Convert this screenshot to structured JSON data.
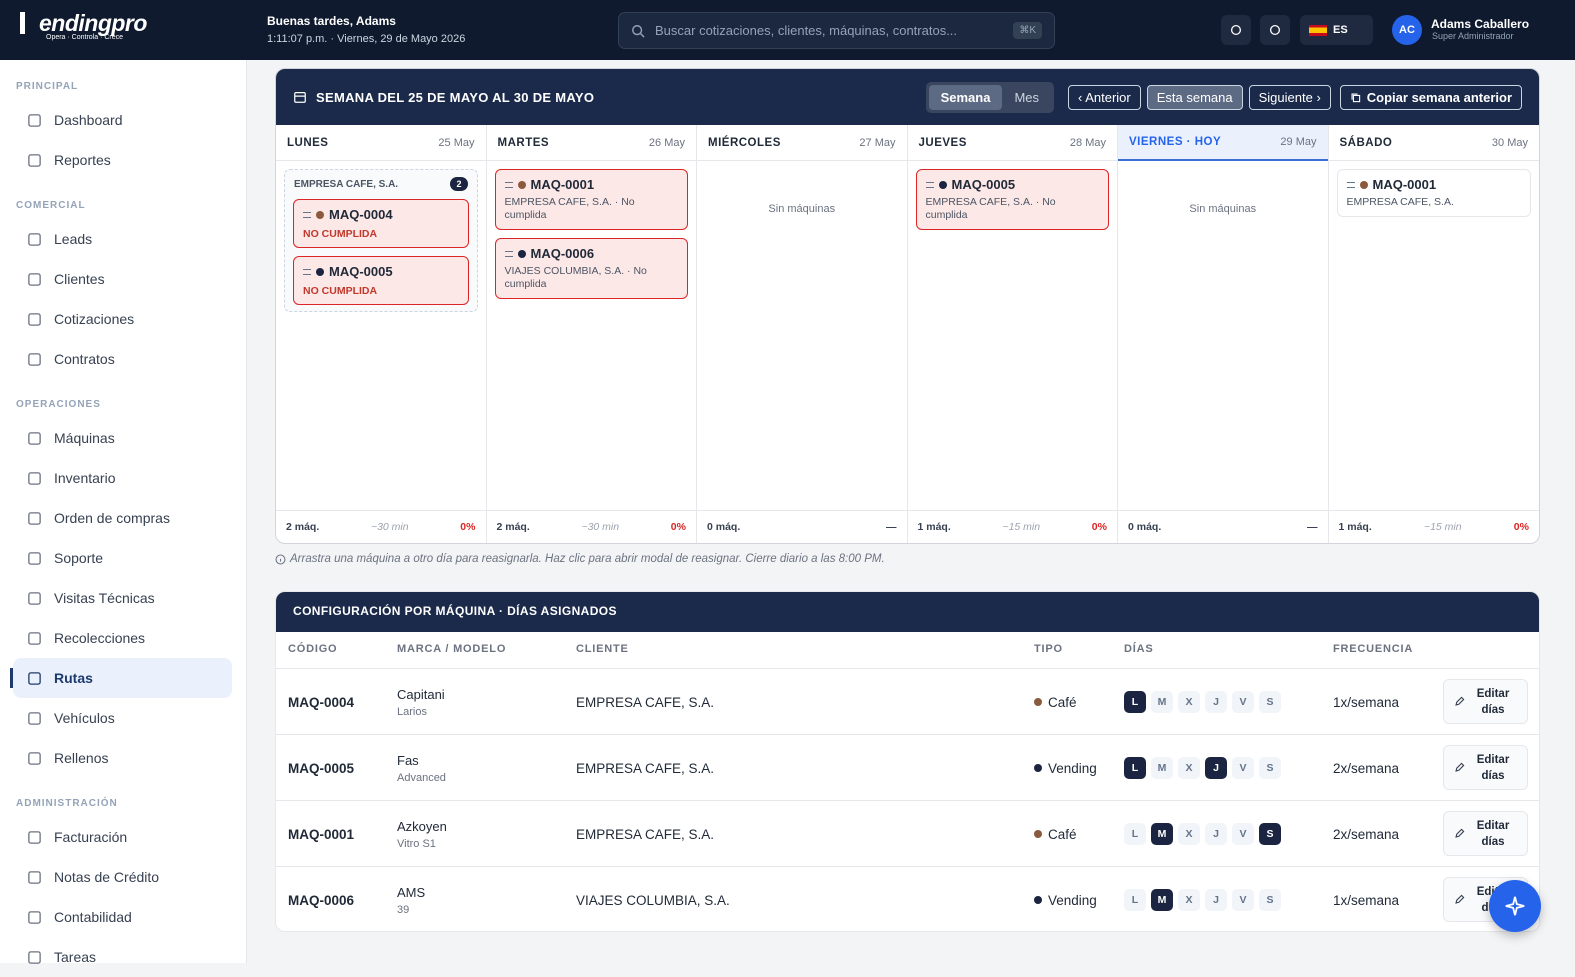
{
  "header": {
    "logo": "endingpro",
    "tagline": "Opera · Controla · Crece",
    "greeting": "Buenas tardes, Adams",
    "datetime": "1:11:07 p.m. · Viernes, 29 de Mayo 2026",
    "search_placeholder": "Buscar cotizaciones, clientes, máquinas, contratos...",
    "search_shortcut": "⌘K",
    "language": "ES",
    "user": {
      "initials": "AC",
      "name": "Adams Caballero",
      "role": "Super Administrador"
    }
  },
  "sidebar": {
    "active": "Rutas",
    "sections": [
      {
        "title": "PRINCIPAL",
        "items": [
          "Dashboard",
          "Reportes"
        ]
      },
      {
        "title": "COMERCIAL",
        "items": [
          "Leads",
          "Clientes",
          "Cotizaciones",
          "Contratos"
        ]
      },
      {
        "title": "OPERACIONES",
        "items": [
          "Máquinas",
          "Inventario",
          "Orden de compras",
          "Soporte",
          "Visitas Técnicas",
          "Recolecciones",
          "Rutas",
          "Vehículos",
          "Rellenos"
        ]
      },
      {
        "title": "ADMINISTRACIÓN",
        "items": [
          "Facturación",
          "Notas de Crédito",
          "Contabilidad",
          "Tareas"
        ]
      }
    ]
  },
  "week": {
    "title": "SEMANA DEL 25 DE MAYO AL 30 DE MAYO",
    "views": [
      "Semana",
      "Mes"
    ],
    "active_view": "Semana",
    "nav": [
      "‹ Anterior",
      "Esta semana",
      "Siguiente ›"
    ],
    "copy": "Copiar semana anterior",
    "days": [
      {
        "name": "LUNES",
        "date": "25 May",
        "today": false,
        "group": {
          "client": "EMPRESA CAFE, S.A.",
          "count": 2,
          "cards": [
            {
              "code": "MAQ-0004",
              "detail": "NO CUMPLIDA",
              "dot": "#8b5a3c",
              "fill": "#fde8e8"
            },
            {
              "code": "MAQ-0005",
              "detail": "NO CUMPLIDA",
              "dot": "#1b2440",
              "fill": "#fde8e8"
            }
          ]
        },
        "cards": [],
        "footer": {
          "count": "2 máq.",
          "time": "~30 min",
          "pct": "0%"
        }
      },
      {
        "name": "MARTES",
        "date": "26 May",
        "today": false,
        "cards": [
          {
            "code": "MAQ-0001",
            "detail": "EMPRESA CAFE, S.A. · No cumplida",
            "dot": "#8b5a3c",
            "fill": "#fde8e8"
          },
          {
            "code": "MAQ-0006",
            "detail": "VIAJES COLUMBIA, S.A. · No cumplida",
            "dot": "#1b2440",
            "fill": "#fde8e8"
          }
        ],
        "footer": {
          "count": "2 máq.",
          "time": "~30 min",
          "pct": "0%"
        }
      },
      {
        "name": "MIÉRCOLES",
        "date": "27 May",
        "today": false,
        "cards": [],
        "empty": "Sin máquinas",
        "footer": {
          "count": "0 máq.",
          "pct": "—"
        }
      },
      {
        "name": "JUEVES",
        "date": "28 May",
        "today": false,
        "cards": [
          {
            "code": "MAQ-0005",
            "detail": "EMPRESA CAFE, S.A. · No cumplida",
            "dot": "#1b2440",
            "fill": "#fde8e8"
          }
        ],
        "footer": {
          "count": "1 máq.",
          "time": "~15 min",
          "pct": "0%"
        }
      },
      {
        "name": "VIERNES · HOY",
        "date": "29 May",
        "today": true,
        "cards": [],
        "empty": "Sin máquinas",
        "footer": {
          "count": "0 máq.",
          "pct": "—"
        }
      },
      {
        "name": "SÁBADO",
        "date": "30 May",
        "today": false,
        "cards": [
          {
            "code": "MAQ-0001",
            "detail": "EMPRESA CAFE, S.A.",
            "dot": "#8b5a3c",
            "fill": "#ffffff"
          }
        ],
        "footer": {
          "count": "1 máq.",
          "time": "~15 min",
          "pct": "0%"
        }
      }
    ],
    "hint": "Arrastra una máquina a otro día para reasignarla. Haz clic para abrir modal de reasignar. Cierre diario a las 8:00 PM."
  },
  "config": {
    "title": "CONFIGURACIÓN POR MÁQUINA · DÍAS ASIGNADOS",
    "columns": [
      "CÓDIGO",
      "MARCA / MODELO",
      "CLIENTE",
      "TIPO",
      "DÍAS",
      "FRECUENCIA"
    ],
    "day_letters": [
      "L",
      "M",
      "X",
      "J",
      "V",
      "S"
    ],
    "edit_label": "Editar días",
    "rows": [
      {
        "code": "MAQ-0004",
        "brand": "Capitani",
        "model": "Larios",
        "client": "EMPRESA CAFE, S.A.",
        "type": "Café",
        "type_color": "#8b5a3c",
        "days": [
          true,
          false,
          false,
          false,
          false,
          false
        ],
        "frequency": "1x/semana"
      },
      {
        "code": "MAQ-0005",
        "brand": "Fas",
        "model": "Advanced",
        "client": "EMPRESA CAFE, S.A.",
        "type": "Vending",
        "type_color": "#1b2440",
        "days": [
          true,
          false,
          false,
          true,
          false,
          false
        ],
        "frequency": "2x/semana"
      },
      {
        "code": "MAQ-0001",
        "brand": "Azkoyen",
        "model": "Vitro S1",
        "client": "EMPRESA CAFE, S.A.",
        "type": "Café",
        "type_color": "#8b5a3c",
        "days": [
          false,
          true,
          false,
          false,
          false,
          true
        ],
        "frequency": "2x/semana"
      },
      {
        "code": "MAQ-0006",
        "brand": "AMS",
        "model": "39",
        "client": "VIAJES COLUMBIA, S.A.",
        "type": "Vending",
        "type_color": "#1b2440",
        "days": [
          false,
          true,
          false,
          false,
          false,
          false
        ],
        "frequency": "1x/semana"
      }
    ]
  }
}
